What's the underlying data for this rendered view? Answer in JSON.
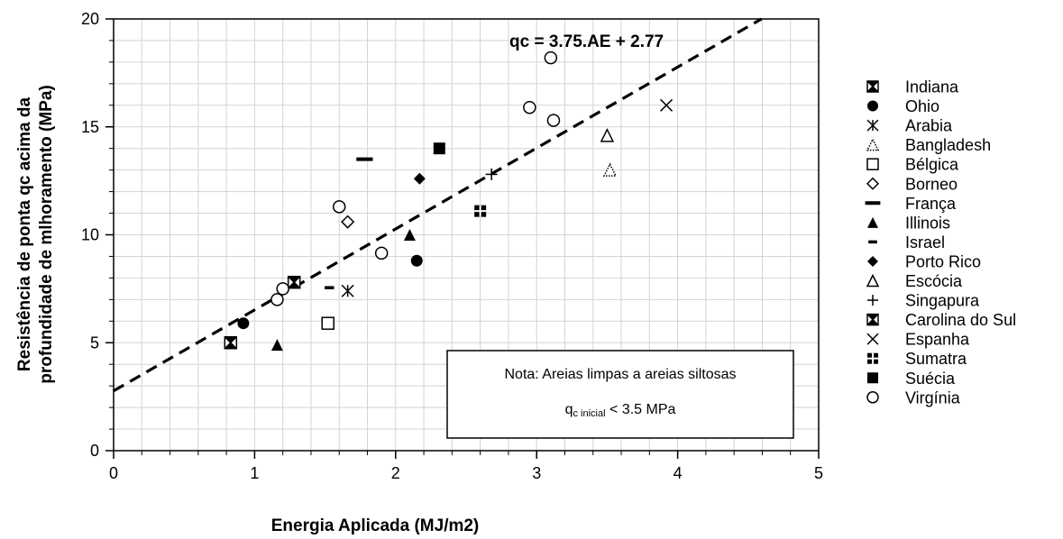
{
  "chart_data": {
    "type": "scatter",
    "title": "",
    "xlabel": "Energia Aplicada (MJ/m2)",
    "ylabel_line1": "Resistência de ponta qc acima da",
    "ylabel_line2": "profundidade de mlhoramento (MPa)",
    "xlim": [
      0,
      5
    ],
    "ylim": [
      0,
      20
    ],
    "x_ticks": [
      0,
      1,
      2,
      3,
      4,
      5
    ],
    "y_ticks": [
      0,
      5,
      10,
      15,
      20
    ],
    "x_tick_labels": [
      "0",
      "1",
      "2",
      "3",
      "4",
      "5"
    ],
    "y_tick_labels": [
      "0",
      "5",
      "10",
      "15",
      "20"
    ],
    "grid": true,
    "legend_position": "right",
    "trendline": {
      "label": "qc = 3.75.AE + 2.77",
      "slope": 3.75,
      "intercept": 2.77,
      "x_range": [
        0,
        4.6
      ]
    },
    "note": {
      "line1": "Nota: Areias limpas a areias siltosas",
      "line2_main": "q",
      "line2_sub": "c inicial",
      "line2_tail": " < 3.5 MPa"
    },
    "series": [
      {
        "name": "Indiana",
        "marker": "box-x",
        "points": [
          [
            1.28,
            7.8
          ]
        ]
      },
      {
        "name": "Ohio",
        "marker": "circle-filled",
        "points": [
          [
            0.92,
            5.9
          ],
          [
            2.15,
            8.8
          ]
        ]
      },
      {
        "name": "Arabia",
        "marker": "asterisk",
        "points": [
          [
            1.66,
            7.4
          ]
        ]
      },
      {
        "name": "Bangladesh",
        "marker": "triangle-dotted",
        "points": [
          [
            3.52,
            13.0
          ]
        ]
      },
      {
        "name": "Bélgica",
        "marker": "square-open",
        "points": [
          [
            1.52,
            5.9
          ]
        ]
      },
      {
        "name": "Borneo",
        "marker": "diamond-open",
        "points": [
          [
            1.66,
            10.6
          ]
        ]
      },
      {
        "name": "França",
        "marker": "dash-long",
        "points": [
          [
            1.78,
            13.5
          ]
        ]
      },
      {
        "name": "Illinois",
        "marker": "triangle-filled",
        "points": [
          [
            1.16,
            4.9
          ],
          [
            2.1,
            10.0
          ]
        ]
      },
      {
        "name": "Israel",
        "marker": "dash-short",
        "points": [
          [
            1.53,
            7.55
          ]
        ]
      },
      {
        "name": "Porto Rico",
        "marker": "diamond-filled",
        "points": [
          [
            2.17,
            12.6
          ]
        ]
      },
      {
        "name": "Escócia",
        "marker": "triangle-open",
        "points": [
          [
            3.5,
            14.6
          ]
        ]
      },
      {
        "name": "Singapura",
        "marker": "plus",
        "points": [
          [
            2.68,
            12.8
          ]
        ]
      },
      {
        "name": "Carolina do Sul",
        "marker": "box-x",
        "points": [
          [
            0.83,
            5.0
          ]
        ]
      },
      {
        "name": "Espanha",
        "marker": "x",
        "points": [
          [
            3.92,
            16.0
          ]
        ]
      },
      {
        "name": "Sumatra",
        "marker": "square-cross",
        "points": [
          [
            2.6,
            11.1
          ]
        ]
      },
      {
        "name": "Suécia",
        "marker": "square-filled",
        "points": [
          [
            2.31,
            14.0
          ]
        ]
      },
      {
        "name": "Virgínia",
        "marker": "circle-open",
        "points": [
          [
            1.6,
            11.3
          ],
          [
            1.9,
            9.15
          ],
          [
            1.16,
            7.0
          ],
          [
            1.2,
            7.5
          ],
          [
            2.95,
            15.9
          ],
          [
            3.12,
            15.3
          ],
          [
            3.1,
            18.2
          ]
        ]
      }
    ]
  }
}
